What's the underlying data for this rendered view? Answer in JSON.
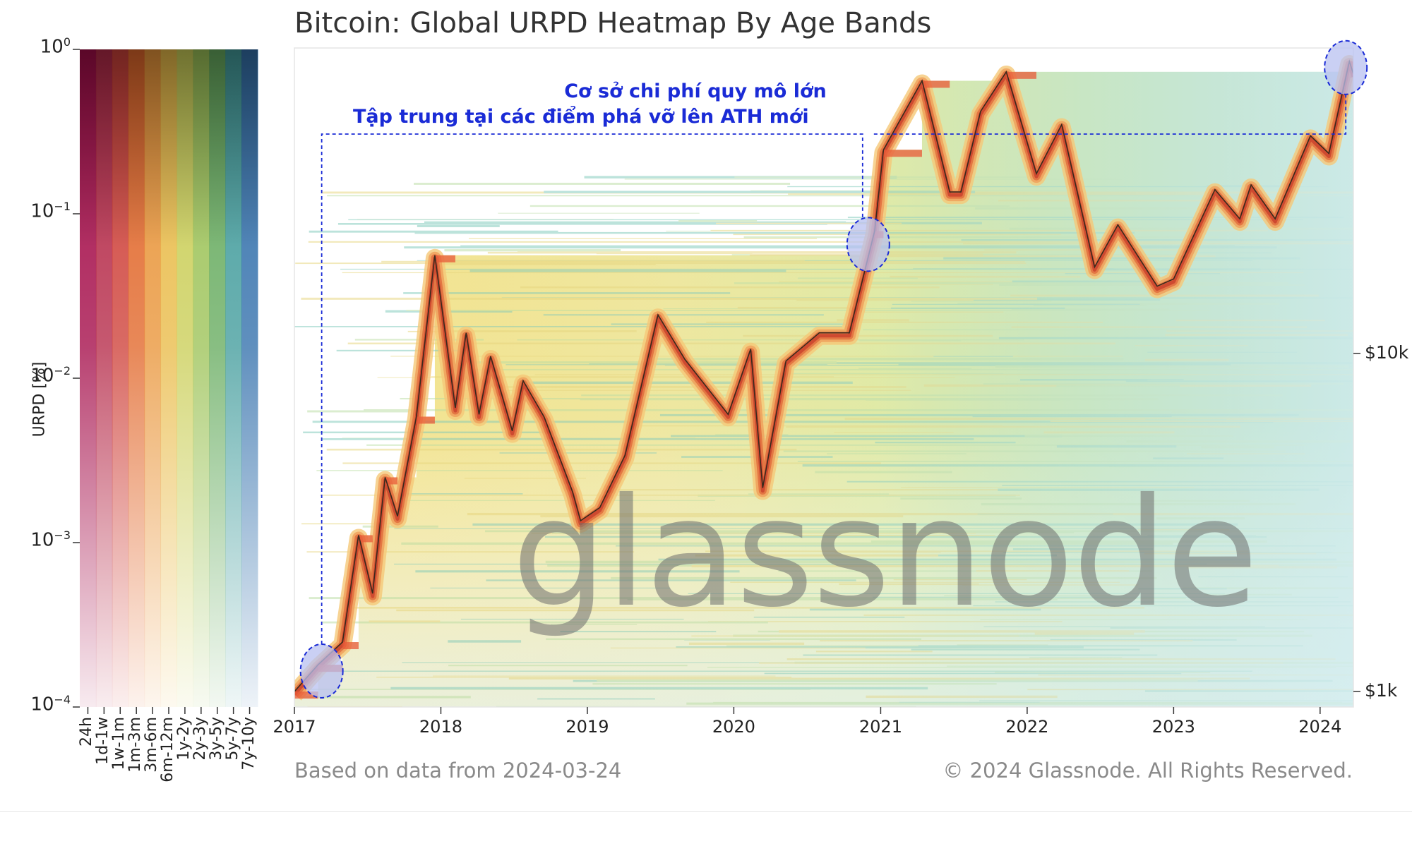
{
  "title": "Bitcoin: Global URPD Heatmap By Age Bands",
  "footer": {
    "source": "Based on data from 2024-03-24",
    "copyright": "© 2024 Glassnode. All Rights Reserved."
  },
  "watermark": "glassnode",
  "annotation": {
    "line1": "Cơ sở chi phí quy mô lớn",
    "line2": "Tập trung tại các điểm phá vỡ lên ATH mới"
  },
  "colors": {
    "annotation": "#1a2bd6",
    "highlight_fill": "#b8c0f0",
    "price_line": "#3a2a1c"
  },
  "chart_data": [
    {
      "type": "heatmap",
      "title": "Bitcoin: Global URPD Heatmap By Age Bands",
      "x": {
        "ticks": [
          "2017",
          "2018",
          "2019",
          "2020",
          "2021",
          "2022",
          "2023",
          "2024"
        ],
        "range": [
          "2017-01-01",
          "2024-03-24"
        ]
      },
      "y_right": {
        "scale": "log",
        "ticks": [
          "$1k",
          "$10k"
        ],
        "tick_values": [
          1000,
          10000
        ],
        "range": [
          900,
          80000
        ]
      },
      "price_series": {
        "name": "BTC price",
        "points": [
          [
            "2017-01-01",
            1000
          ],
          [
            "2017-03-01",
            1200
          ],
          [
            "2017-05-01",
            1400
          ],
          [
            "2017-06-10",
            2900
          ],
          [
            "2017-07-15",
            1950
          ],
          [
            "2017-08-15",
            4300
          ],
          [
            "2017-09-15",
            3300
          ],
          [
            "2017-11-01",
            6500
          ],
          [
            "2017-12-17",
            19500
          ],
          [
            "2018-02-06",
            6900
          ],
          [
            "2018-03-05",
            11500
          ],
          [
            "2018-04-06",
            6600
          ],
          [
            "2018-05-05",
            9800
          ],
          [
            "2018-06-28",
            5900
          ],
          [
            "2018-07-25",
            8300
          ],
          [
            "2018-09-15",
            6500
          ],
          [
            "2018-11-25",
            3900
          ],
          [
            "2018-12-15",
            3200
          ],
          [
            "2019-02-01",
            3500
          ],
          [
            "2019-04-05",
            5000
          ],
          [
            "2019-06-26",
            13000
          ],
          [
            "2019-09-01",
            9600
          ],
          [
            "2019-12-18",
            6600
          ],
          [
            "2020-02-12",
            10300
          ],
          [
            "2020-03-13",
            4000
          ],
          [
            "2020-05-10",
            9500
          ],
          [
            "2020-08-01",
            11500
          ],
          [
            "2020-10-15",
            11500
          ],
          [
            "2020-12-17",
            23000
          ],
          [
            "2021-01-08",
            40000
          ],
          [
            "2021-04-14",
            64000
          ],
          [
            "2021-06-22",
            30000
          ],
          [
            "2021-07-20",
            30000
          ],
          [
            "2021-09-07",
            52000
          ],
          [
            "2021-11-10",
            68000
          ],
          [
            "2022-01-24",
            34000
          ],
          [
            "2022-03-28",
            47500
          ],
          [
            "2022-06-18",
            18000
          ],
          [
            "2022-08-15",
            24000
          ],
          [
            "2022-11-21",
            15800
          ],
          [
            "2023-01-01",
            16600
          ],
          [
            "2023-04-14",
            30500
          ],
          [
            "2023-06-15",
            25000
          ],
          [
            "2023-07-13",
            31500
          ],
          [
            "2023-09-11",
            25000
          ],
          [
            "2023-12-08",
            44000
          ],
          [
            "2024-01-23",
            39000
          ],
          [
            "2024-03-14",
            73000
          ],
          [
            "2024-03-24",
            67000
          ]
        ]
      }
    },
    {
      "type": "heatmap",
      "ylabel": "URPD [%]",
      "color_scale": {
        "scale": "log",
        "ticks": [
          "10^0",
          "10^-1",
          "10^-2",
          "10^-3",
          "10^-4"
        ],
        "tick_values": [
          1,
          0.1,
          0.01,
          0.001,
          0.0001
        ]
      },
      "categories": [
        "24h",
        "1d-1w",
        "1w-1m",
        "1m-3m",
        "3m-6m",
        "6m-12m",
        "1y-2y",
        "2y-3y",
        "3y-5y",
        "5y-7y",
        "7y-10y"
      ],
      "band_colors": [
        "#a00040",
        "#b22040",
        "#cc3830",
        "#e06020",
        "#e89030",
        "#e8b840",
        "#c8cc50",
        "#98c050",
        "#60a858",
        "#3a9898",
        "#2a6aa8"
      ]
    }
  ]
}
